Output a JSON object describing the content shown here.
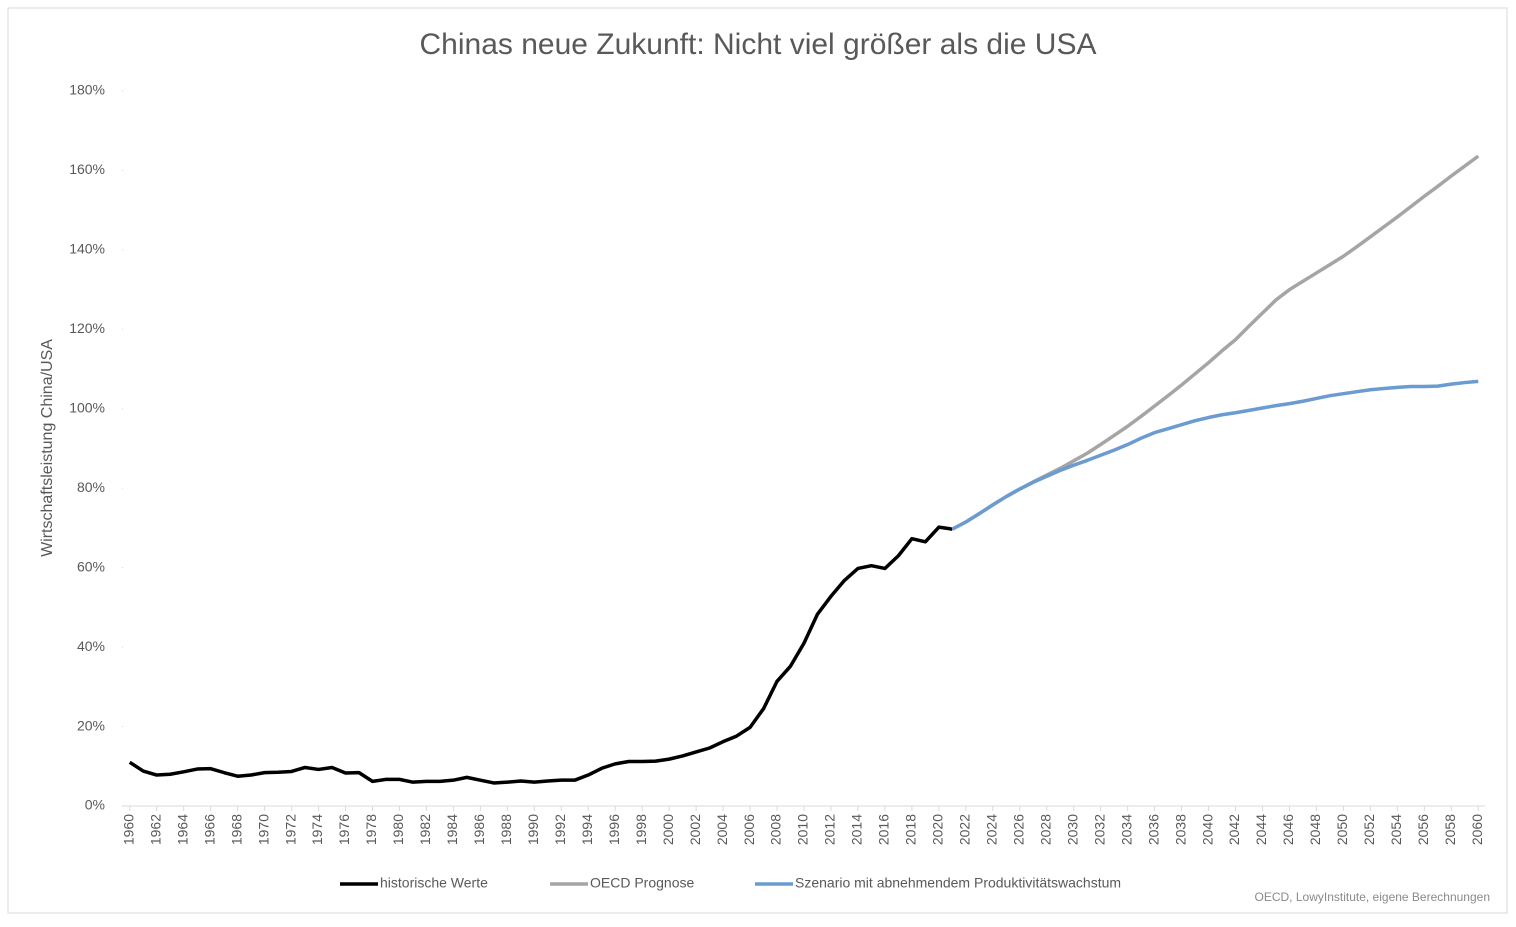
{
  "chart_data": {
    "type": "line",
    "title": "Chinas neue Zukunft: Nicht viel größer als die USA",
    "y_label": "Wirtschaftsleistung China/USA",
    "source": "OECD, LowyInstitute, eigene Berechnungen",
    "x": [
      1960,
      1961,
      1962,
      1963,
      1964,
      1965,
      1966,
      1967,
      1968,
      1969,
      1970,
      1971,
      1972,
      1973,
      1974,
      1975,
      1976,
      1977,
      1978,
      1979,
      1980,
      1981,
      1982,
      1983,
      1984,
      1985,
      1986,
      1987,
      1988,
      1989,
      1990,
      1991,
      1992,
      1993,
      1994,
      1995,
      1996,
      1997,
      1998,
      1999,
      2000,
      2001,
      2002,
      2003,
      2004,
      2005,
      2006,
      2007,
      2008,
      2009,
      2010,
      2011,
      2012,
      2013,
      2014,
      2015,
      2016,
      2017,
      2018,
      2019,
      2020,
      2021,
      2022,
      2023,
      2024,
      2025,
      2026,
      2027,
      2028,
      2029,
      2030,
      2031,
      2032,
      2033,
      2034,
      2035,
      2036,
      2037,
      2038,
      2039,
      2040,
      2041,
      2042,
      2043,
      2044,
      2045,
      2046,
      2047,
      2048,
      2049,
      2050,
      2051,
      2052,
      2053,
      2054,
      2055,
      2056,
      2057,
      2058,
      2059,
      2060
    ],
    "xlim": [
      1959.5,
      2060.5
    ],
    "xticks": [
      1960,
      1962,
      1964,
      1966,
      1968,
      1970,
      1972,
      1974,
      1976,
      1978,
      1980,
      1982,
      1984,
      1986,
      1988,
      1990,
      1992,
      1994,
      1996,
      1998,
      2000,
      2002,
      2004,
      2006,
      2008,
      2010,
      2012,
      2014,
      2016,
      2018,
      2020,
      2022,
      2024,
      2026,
      2028,
      2030,
      2032,
      2034,
      2036,
      2038,
      2040,
      2042,
      2044,
      2046,
      2048,
      2050,
      2052,
      2054,
      2056,
      2058,
      2060
    ],
    "ylim": [
      0,
      180
    ],
    "yticks": [
      {
        "value": 0,
        "label": "0%"
      },
      {
        "value": 20,
        "label": "20%"
      },
      {
        "value": 40,
        "label": "40%"
      },
      {
        "value": 60,
        "label": "60%"
      },
      {
        "value": 80,
        "label": "80%"
      },
      {
        "value": 100,
        "label": "100%"
      },
      {
        "value": 120,
        "label": "120%"
      },
      {
        "value": 140,
        "label": "140%"
      },
      {
        "value": 160,
        "label": "160%"
      },
      {
        "value": 180,
        "label": "180%"
      }
    ],
    "grid": false,
    "legend": "bottom",
    "series": [
      {
        "name": "historische Werte",
        "color": "#000000",
        "values": [
          11,
          8.8,
          7.8,
          8,
          8.6,
          9.3,
          9.4,
          8.4,
          7.5,
          7.8,
          8.4,
          8.5,
          8.7,
          9.7,
          9.2,
          9.7,
          8.3,
          8.4,
          6.2,
          6.7,
          6.7,
          6,
          6.2,
          6.2,
          6.5,
          7.2,
          6.5,
          5.8,
          6,
          6.3,
          6,
          6.3,
          6.5,
          6.5,
          7.8,
          9.5,
          10.6,
          11.2,
          11.2,
          11.3,
          11.8,
          12.6,
          13.6,
          14.6,
          16.2,
          17.6,
          19.8,
          24.5,
          31.4,
          35.2,
          41,
          48.3,
          52.8,
          56.8,
          59.8,
          60.5,
          59.8,
          63,
          67.3,
          66.5,
          70.2,
          69.7,
          null,
          null,
          null,
          null,
          null,
          null,
          null,
          null,
          null,
          null,
          null,
          null,
          null,
          null,
          null,
          null,
          null,
          null,
          null,
          null,
          null,
          null,
          null,
          null,
          null,
          null,
          null,
          null,
          null,
          null,
          null,
          null,
          null,
          null,
          null,
          null,
          null,
          null,
          null
        ]
      },
      {
        "name": "OECD Prognose",
        "color": "#a5a5a5",
        "values": [
          null,
          null,
          null,
          null,
          null,
          null,
          null,
          null,
          null,
          null,
          null,
          null,
          null,
          null,
          null,
          null,
          null,
          null,
          null,
          null,
          null,
          null,
          null,
          null,
          null,
          null,
          null,
          null,
          null,
          null,
          null,
          null,
          null,
          null,
          null,
          null,
          null,
          null,
          null,
          null,
          null,
          null,
          null,
          null,
          null,
          null,
          null,
          null,
          null,
          null,
          null,
          null,
          null,
          null,
          null,
          null,
          null,
          null,
          null,
          null,
          null,
          69.7,
          71.5,
          73.6,
          75.8,
          77.9,
          79.8,
          81.6,
          83.3,
          85,
          86.9,
          88.8,
          91,
          93.3,
          95.6,
          98.1,
          100.7,
          103.3,
          106,
          108.8,
          111.6,
          114.6,
          117.4,
          120.8,
          124.1,
          127.4,
          130,
          132.1,
          134.2,
          136.3,
          138.4,
          140.8,
          143.3,
          145.8,
          148.3,
          150.9,
          153.5,
          156,
          158.6,
          161.1,
          163.6
        ]
      },
      {
        "name": "Szenario mit abnehmendem Produktivitätswachstum",
        "color": "#6a9bd1",
        "values": [
          null,
          null,
          null,
          null,
          null,
          null,
          null,
          null,
          null,
          null,
          null,
          null,
          null,
          null,
          null,
          null,
          null,
          null,
          null,
          null,
          null,
          null,
          null,
          null,
          null,
          null,
          null,
          null,
          null,
          null,
          null,
          null,
          null,
          null,
          null,
          null,
          null,
          null,
          null,
          null,
          null,
          null,
          null,
          null,
          null,
          null,
          null,
          null,
          null,
          null,
          null,
          null,
          null,
          null,
          null,
          null,
          null,
          null,
          null,
          null,
          null,
          69.7,
          71.5,
          73.6,
          75.8,
          77.9,
          79.8,
          81.5,
          83,
          84.5,
          85.8,
          87,
          88.3,
          89.6,
          91,
          92.6,
          94,
          95,
          96,
          97,
          97.8,
          98.5,
          99,
          99.6,
          100.2,
          100.8,
          101.3,
          101.9,
          102.6,
          103.3,
          103.8,
          104.3,
          104.8,
          105.1,
          105.4,
          105.6,
          105.6,
          105.7,
          106.2,
          106.6,
          106.9
        ]
      }
    ]
  }
}
